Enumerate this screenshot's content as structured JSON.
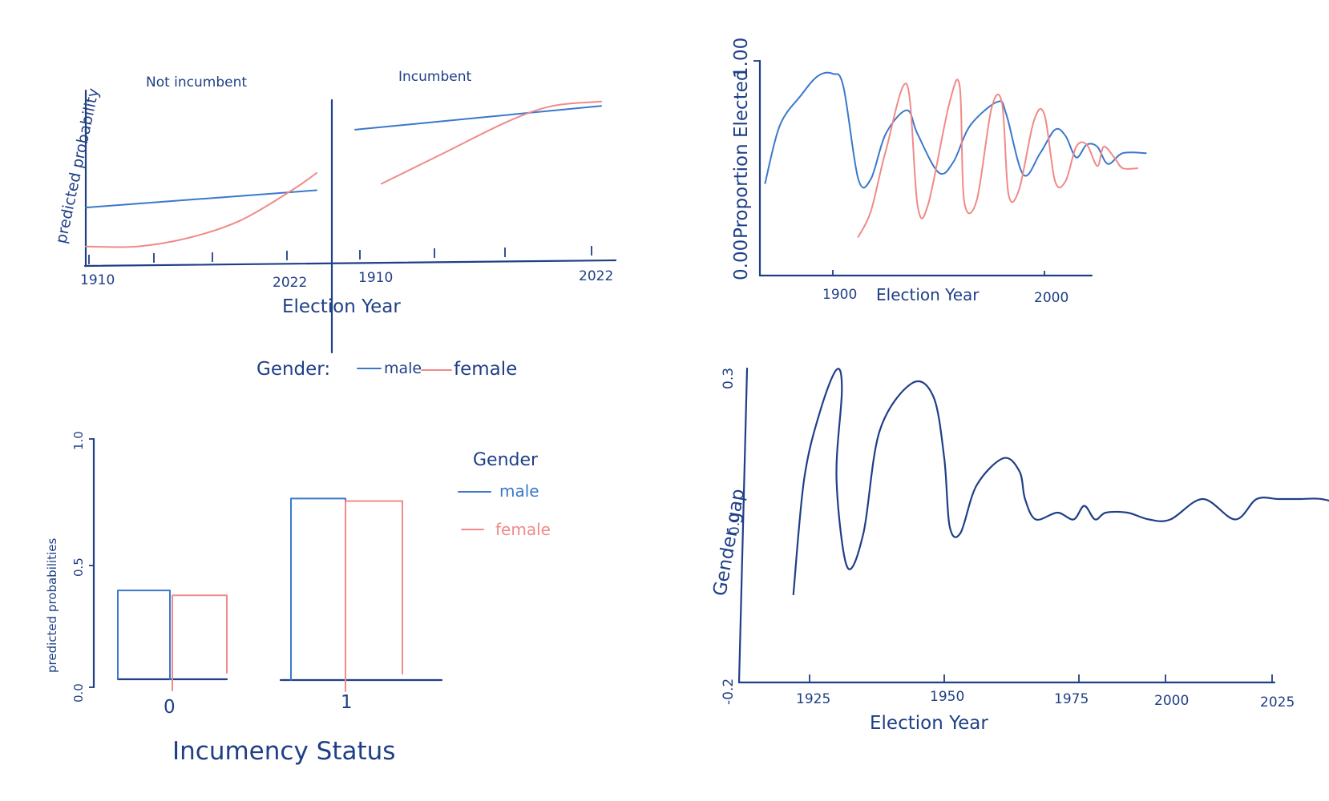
{
  "colors": {
    "navy": "#1f3f86",
    "male": "#3a78cc",
    "female": "#f08a88"
  },
  "chart_data": [
    {
      "type": "line",
      "panels": [
        "Not incumbent",
        "Incumbent"
      ],
      "ylabel": "predicted probability",
      "xlabel": "Election Year",
      "ticks": [
        "1910",
        "2022",
        "1910",
        "2022"
      ],
      "legend_title": "Gender:",
      "legend": [
        "male",
        "female"
      ],
      "series": [
        {
          "name": "male",
          "panel": "Not incumbent",
          "x": [
            1910,
            2022
          ],
          "y": [
            0.27,
            0.35
          ]
        },
        {
          "name": "female",
          "panel": "Not incumbent",
          "x": [
            1910,
            1935,
            1960,
            1985,
            2010,
            2022
          ],
          "y": [
            0.09,
            0.09,
            0.13,
            0.21,
            0.35,
            0.43
          ]
        },
        {
          "name": "male",
          "panel": "Incumbent",
          "x": [
            1910,
            2022
          ],
          "y": [
            0.63,
            0.74
          ]
        },
        {
          "name": "female",
          "panel": "Incumbent",
          "x": [
            1922,
            1950,
            1980,
            2000,
            2022
          ],
          "y": [
            0.38,
            0.52,
            0.67,
            0.74,
            0.76
          ]
        }
      ]
    },
    {
      "type": "line",
      "xlabel": "Election Year",
      "ylabel": "Proportion Elected",
      "y_ticks": [
        "0.00",
        "1.00"
      ],
      "x_ticks": [
        "1900",
        "2000"
      ],
      "series": [
        {
          "name": "male",
          "x": [
            1868,
            1875,
            1885,
            1893,
            1900,
            1905,
            1912,
            1918,
            1925,
            1935,
            1940,
            1950,
            1957,
            1965,
            1978,
            1982,
            1990,
            1998,
            2005,
            2010,
            2015,
            2020,
            2025,
            2030,
            2037,
            2048
          ],
          "y": [
            0.43,
            0.7,
            0.84,
            0.93,
            0.94,
            0.88,
            0.45,
            0.45,
            0.66,
            0.77,
            0.66,
            0.48,
            0.53,
            0.7,
            0.81,
            0.75,
            0.47,
            0.57,
            0.68,
            0.65,
            0.55,
            0.61,
            0.6,
            0.52,
            0.57,
            0.57
          ]
        },
        {
          "name": "female",
          "x": [
            1912,
            1918,
            1925,
            1935,
            1940,
            1945,
            1955,
            1960,
            1962,
            1968,
            1975,
            1980,
            1983,
            1988,
            1995,
            2000,
            2005,
            2010,
            2015,
            2020,
            2025,
            2028,
            2033,
            2037,
            2044
          ],
          "y": [
            0.18,
            0.3,
            0.58,
            0.89,
            0.33,
            0.33,
            0.8,
            0.88,
            0.35,
            0.35,
            0.78,
            0.8,
            0.38,
            0.4,
            0.72,
            0.75,
            0.44,
            0.44,
            0.6,
            0.61,
            0.51,
            0.6,
            0.55,
            0.5,
            0.5
          ]
        }
      ]
    },
    {
      "type": "bar",
      "ylabel": "predicted probabilities",
      "xlabel": "Incumency Status",
      "categories": [
        "0",
        "1"
      ],
      "y_ticks": [
        "0.0",
        "0.5",
        "1.0"
      ],
      "ylim": [
        0,
        1
      ],
      "legend_title": "Gender",
      "series": [
        {
          "name": "male",
          "values": [
            0.39,
            0.76
          ]
        },
        {
          "name": "female",
          "values": [
            0.37,
            0.75
          ]
        }
      ]
    },
    {
      "type": "line",
      "ylabel": "Gender gap",
      "xlabel": "Election Year",
      "x_ticks": [
        "1925",
        "1950",
        "1975",
        "2000",
        "2025"
      ],
      "y_ticks": [
        "0.3",
        "0.0",
        "-0.2"
      ],
      "ylim": [
        -0.2,
        0.3
      ],
      "series": [
        {
          "name": "gender gap",
          "x": [
            1922,
            1924,
            1927,
            1930,
            1931,
            1930,
            1932,
            1935,
            1938,
            1944,
            1948,
            1950,
            1951,
            1953,
            1956,
            1961,
            1964,
            1965,
            1967,
            1971,
            1974,
            1976,
            1978,
            1980,
            1984,
            1988,
            1992,
            1998,
            2004,
            2008,
            2012,
            2016,
            2020,
            2025,
            2026
          ],
          "y": [
            -0.12,
            0.05,
            0.15,
            0.21,
            0.18,
            0.05,
            -0.08,
            -0.03,
            0.12,
            0.19,
            0.17,
            0.08,
            -0.02,
            -0.03,
            0.04,
            0.08,
            0.06,
            0.02,
            -0.01,
            0.0,
            -0.01,
            0.01,
            -0.01,
            0.0,
            0.0,
            -0.01,
            -0.01,
            0.02,
            -0.01,
            0.02,
            0.02,
            0.02,
            0.02,
            0.01,
            0.01
          ]
        }
      ]
    }
  ]
}
